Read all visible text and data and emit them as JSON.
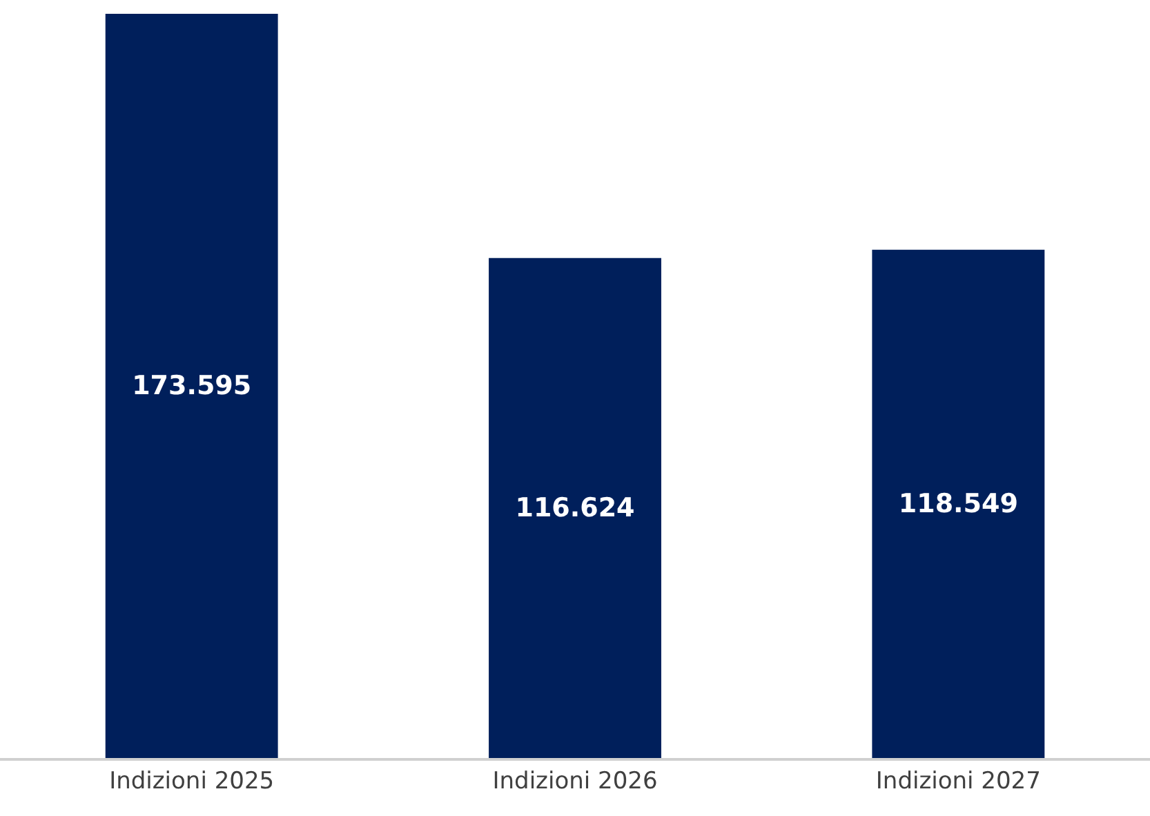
{
  "chart_data": {
    "type": "bar",
    "categories": [
      "Indizioni 2025",
      "Indizioni 2026",
      "Indizioni 2027"
    ],
    "values": [
      173595,
      116624,
      118549
    ],
    "value_labels": [
      "173.595",
      "116.624",
      "118.549"
    ],
    "color": "#001f5b"
  }
}
